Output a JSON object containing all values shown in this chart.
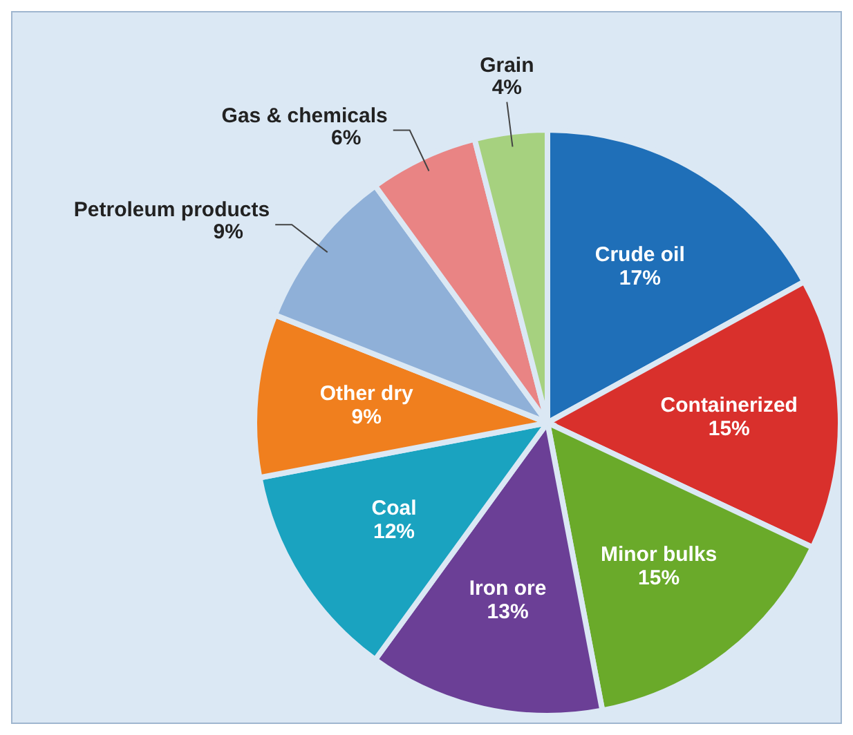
{
  "chart_data": {
    "type": "pie",
    "categories": [
      "Crude oil",
      "Containerized",
      "Minor bulks",
      "Iron ore",
      "Coal",
      "Other dry",
      "Petroleum products",
      "Gas & chemicals",
      "Grain"
    ],
    "values": [
      17,
      15,
      15,
      13,
      12,
      9,
      9,
      6,
      4
    ],
    "value_labels": [
      "17%",
      "15%",
      "15%",
      "13%",
      "12%",
      "9%",
      "9%",
      "6%",
      "4%"
    ],
    "colors": [
      "#1f6fb8",
      "#d9302c",
      "#6aaa2a",
      "#6b3f96",
      "#1aa3c0",
      "#f07f1e",
      "#8fb0d8",
      "#e98484",
      "#a6d17f"
    ]
  }
}
